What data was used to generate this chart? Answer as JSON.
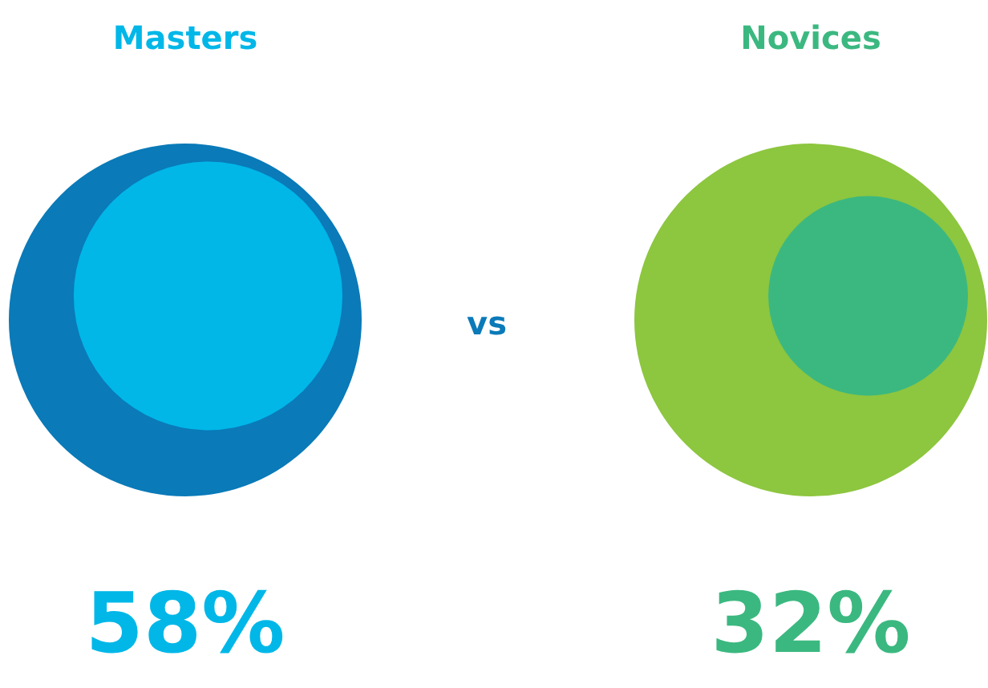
{
  "chart_data": {
    "type": "other",
    "categories": [
      "Masters",
      "Novices"
    ],
    "colors": [
      "#0a7ab8",
      "#8dc63f"
    ],
    "series": [
      {
        "values": [
          58,
          32
        ],
        "colors": [
          "#00b7e8",
          "#3bb880"
        ],
        "value_labels": [
          "58%",
          "32%"
        ]
      }
    ],
    "annotations": [
      "vs"
    ]
  }
}
